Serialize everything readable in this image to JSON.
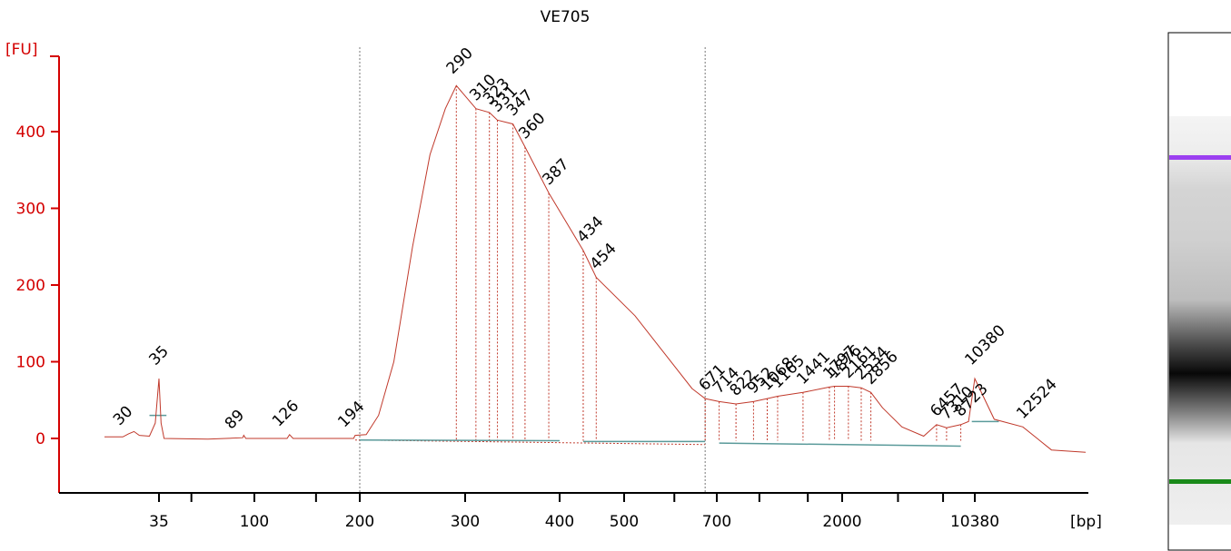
{
  "chart_data": {
    "type": "line",
    "title": "VE705",
    "ylabel": "[FU]",
    "xlabel": "[bp]",
    "ylim": [
      -65,
      470
    ],
    "y_ticks": [
      "0",
      "100",
      "200",
      "300",
      "400"
    ],
    "x_tick_labels": [
      {
        "label": "35",
        "value": 35
      },
      {
        "label": "100",
        "value": 100
      },
      {
        "label": "200",
        "value": 200
      },
      {
        "label": "300",
        "value": 300
      },
      {
        "label": "400",
        "value": 400
      },
      {
        "label": "500",
        "value": 500
      },
      {
        "label": "700",
        "value": 700
      },
      {
        "label": "2000",
        "value": 2000
      },
      {
        "label": "10380",
        "value": 10380
      }
    ],
    "x_minor_ticks": [
      50,
      150,
      600,
      1000,
      1500,
      4000,
      7000
    ],
    "region_lines_bp": [
      200,
      671
    ],
    "marker_color_lower": "#1a8a1a",
    "marker_color_upper": "#9b3ff0",
    "trace_color": "#c0392b",
    "peaks": [
      {
        "label": "30",
        "bp": 30,
        "fu": 9
      },
      {
        "label": "35",
        "bp": 35,
        "fu": 78,
        "marker": "lower"
      },
      {
        "label": "89",
        "bp": 89,
        "fu": 4
      },
      {
        "label": "126",
        "bp": 126,
        "fu": 5
      },
      {
        "label": "194",
        "bp": 194,
        "fu": 4
      },
      {
        "label": "290",
        "bp": 290,
        "fu": 460
      },
      {
        "label": "310",
        "bp": 310,
        "fu": 430
      },
      {
        "label": "323",
        "bp": 323,
        "fu": 425
      },
      {
        "label": "331",
        "bp": 331,
        "fu": 415
      },
      {
        "label": "347",
        "bp": 347,
        "fu": 410
      },
      {
        "label": "360",
        "bp": 360,
        "fu": 380
      },
      {
        "label": "387",
        "bp": 387,
        "fu": 320
      },
      {
        "label": "434",
        "bp": 434,
        "fu": 245
      },
      {
        "label": "454",
        "bp": 454,
        "fu": 210
      },
      {
        "label": "671",
        "bp": 671,
        "fu": 52
      },
      {
        "label": "714",
        "bp": 714,
        "fu": 48
      },
      {
        "label": "822",
        "bp": 822,
        "fu": 45
      },
      {
        "label": "952",
        "bp": 952,
        "fu": 48
      },
      {
        "label": "1068",
        "bp": 1068,
        "fu": 52
      },
      {
        "label": "1165",
        "bp": 1165,
        "fu": 55
      },
      {
        "label": "1441",
        "bp": 1441,
        "fu": 60
      },
      {
        "label": "1797",
        "bp": 1797,
        "fu": 67
      },
      {
        "label": "1876",
        "bp": 1876,
        "fu": 68
      },
      {
        "label": "2161",
        "bp": 2161,
        "fu": 68
      },
      {
        "label": "2534",
        "bp": 2534,
        "fu": 66
      },
      {
        "label": "2856",
        "bp": 2856,
        "fu": 60
      },
      {
        "label": "6457",
        "bp": 6457,
        "fu": 18
      },
      {
        "label": "7310",
        "bp": 7310,
        "fu": 14
      },
      {
        "label": "8723",
        "bp": 8723,
        "fu": 18
      },
      {
        "label": "10380",
        "bp": 10380,
        "fu": 78,
        "marker": "upper"
      },
      {
        "label": "12524",
        "bp": 12524,
        "fu": 15
      }
    ]
  }
}
